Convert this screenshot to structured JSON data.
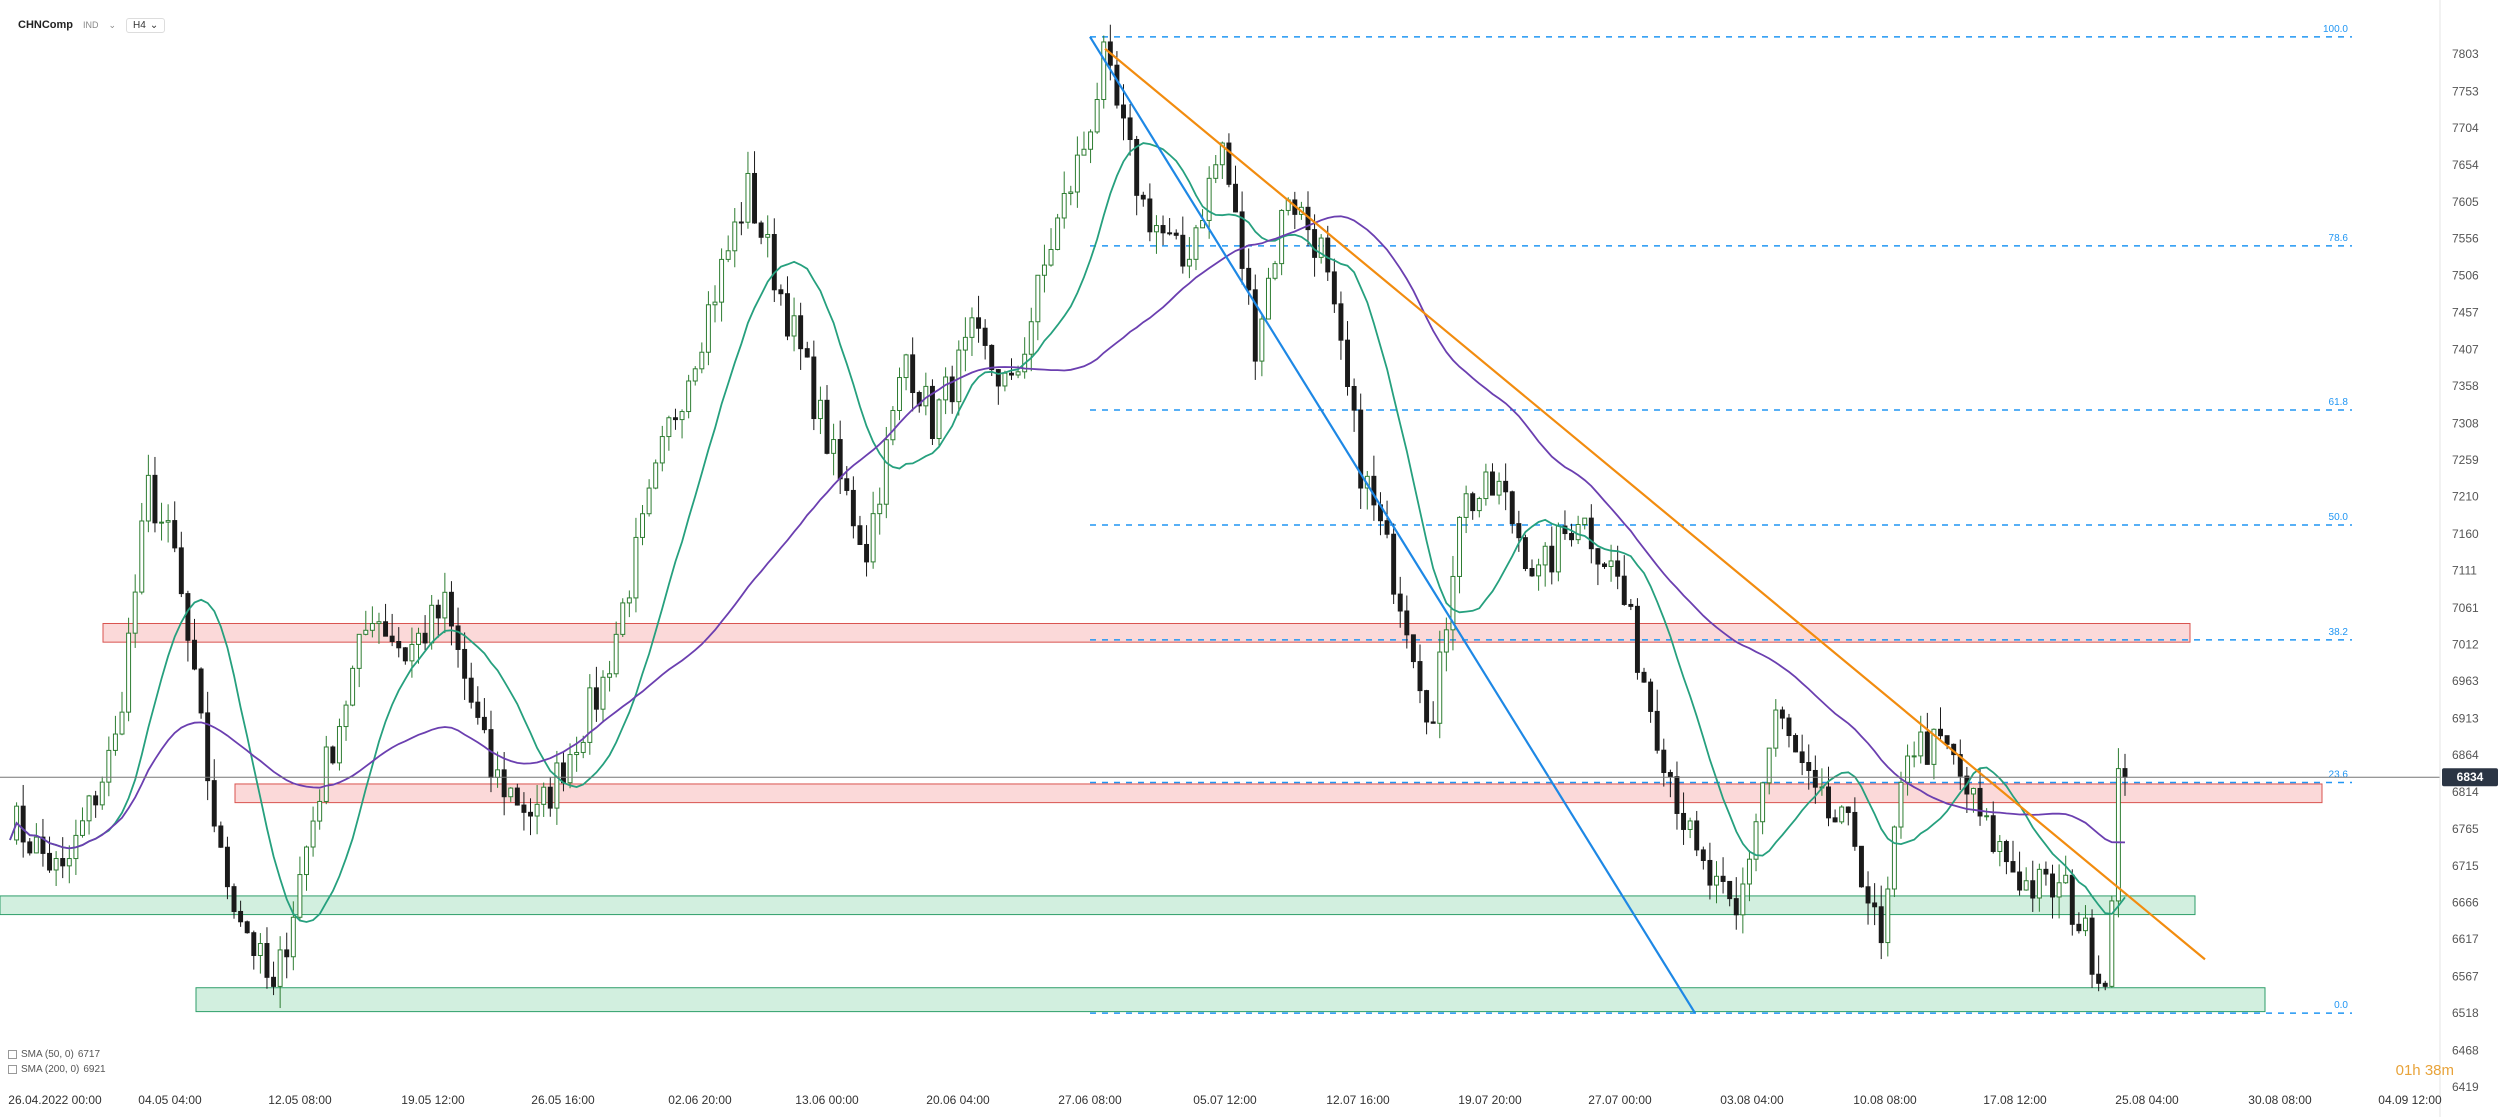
{
  "header": {
    "symbol": "CHNComp",
    "indicator_label": "IND",
    "timeframe": "H4"
  },
  "legend": [
    {
      "label": "SMA (50, 0)",
      "value": "6717"
    },
    {
      "label": "SMA (200, 0)",
      "value": "6921"
    }
  ],
  "countdown": "01h 38m",
  "chart_data": {
    "type": "candlestick",
    "title": "",
    "xlabel": "",
    "ylabel": "",
    "x_tick_labels": [
      "26.04.2022 00:00",
      "04.05 04:00",
      "12.05 08:00",
      "19.05 12:00",
      "26.05 16:00",
      "02.06 20:00",
      "13.06 00:00",
      "20.06 04:00",
      "27.06 08:00",
      "05.07 12:00",
      "12.07 16:00",
      "19.07 20:00",
      "27.07 00:00",
      "03.08 04:00",
      "10.08 08:00",
      "17.08 12:00",
      "25.08 04:00",
      "30.08 08:00",
      "04.09 12:00"
    ],
    "y_tick_labels": [
      7803,
      7753,
      7704,
      7654,
      7605,
      7556,
      7506,
      7457,
      7407,
      7358,
      7308,
      7259,
      7210,
      7160,
      7111,
      7061,
      7012,
      6963,
      6913,
      6864,
      6814,
      6765,
      6715,
      6666,
      6617,
      6567,
      6518,
      6468,
      6419
    ],
    "ylim": [
      6419,
      7850
    ],
    "current_price": 6834,
    "price_path_key_points": [
      {
        "i": 0,
        "v": 6780
      },
      {
        "i": 8,
        "v": 6700
      },
      {
        "i": 16,
        "v": 6880
      },
      {
        "i": 21,
        "v": 7220
      },
      {
        "i": 25,
        "v": 7130
      },
      {
        "i": 32,
        "v": 6720
      },
      {
        "i": 40,
        "v": 6540
      },
      {
        "i": 47,
        "v": 6820
      },
      {
        "i": 55,
        "v": 7060
      },
      {
        "i": 60,
        "v": 7000
      },
      {
        "i": 66,
        "v": 7060
      },
      {
        "i": 73,
        "v": 6840
      },
      {
        "i": 80,
        "v": 6780
      },
      {
        "i": 90,
        "v": 6960
      },
      {
        "i": 100,
        "v": 7300
      },
      {
        "i": 112,
        "v": 7620
      },
      {
        "i": 120,
        "v": 7400
      },
      {
        "i": 126,
        "v": 7230
      },
      {
        "i": 130,
        "v": 7140
      },
      {
        "i": 136,
        "v": 7400
      },
      {
        "i": 140,
        "v": 7310
      },
      {
        "i": 146,
        "v": 7420
      },
      {
        "i": 152,
        "v": 7350
      },
      {
        "i": 158,
        "v": 7550
      },
      {
        "i": 163,
        "v": 7680
      },
      {
        "i": 166,
        "v": 7790
      },
      {
        "i": 172,
        "v": 7600
      },
      {
        "i": 178,
        "v": 7520
      },
      {
        "i": 184,
        "v": 7680
      },
      {
        "i": 189,
        "v": 7420
      },
      {
        "i": 194,
        "v": 7620
      },
      {
        "i": 199,
        "v": 7540
      },
      {
        "i": 205,
        "v": 7250
      },
      {
        "i": 212,
        "v": 7050
      },
      {
        "i": 216,
        "v": 6900
      },
      {
        "i": 220,
        "v": 7200
      },
      {
        "i": 226,
        "v": 7220
      },
      {
        "i": 232,
        "v": 7100
      },
      {
        "i": 238,
        "v": 7190
      },
      {
        "i": 244,
        "v": 7100
      },
      {
        "i": 250,
        "v": 6900
      },
      {
        "i": 256,
        "v": 6720
      },
      {
        "i": 262,
        "v": 6640
      },
      {
        "i": 268,
        "v": 6920
      },
      {
        "i": 274,
        "v": 6800
      },
      {
        "i": 280,
        "v": 6750
      },
      {
        "i": 284,
        "v": 6600
      },
      {
        "i": 288,
        "v": 6880
      },
      {
        "i": 294,
        "v": 6870
      },
      {
        "i": 300,
        "v": 6760
      },
      {
        "i": 306,
        "v": 6690
      },
      {
        "i": 312,
        "v": 6680
      },
      {
        "i": 318,
        "v": 6560
      },
      {
        "i": 320,
        "v": 6834
      }
    ],
    "series": [
      {
        "name": "SMA (50, 0)",
        "value": 6717,
        "color": "#26a07e"
      },
      {
        "name": "SMA (200, 0)",
        "value": 6921,
        "color": "#6b3fb0"
      }
    ],
    "fib_levels": [
      {
        "label": "100.0",
        "value": 7826
      },
      {
        "label": "78.6",
        "value": 7546
      },
      {
        "label": "61.8",
        "value": 7326
      },
      {
        "label": "50.0",
        "value": 7172
      },
      {
        "label": "38.2",
        "value": 7018
      },
      {
        "label": "23.6",
        "value": 6827
      },
      {
        "label": "0.0",
        "value": 6518
      }
    ],
    "zones": [
      {
        "kind": "resistance",
        "from": 7015,
        "to": 7040,
        "color": "#f4a0a0"
      },
      {
        "kind": "resistance",
        "from": 6800,
        "to": 6825,
        "color": "#f4a0a0"
      },
      {
        "kind": "support",
        "from": 6650,
        "to": 6675,
        "color": "#8fd6b0"
      },
      {
        "kind": "support",
        "from": 6520,
        "to": 6552,
        "color": "#8fd6b0"
      }
    ],
    "trendlines": [
      {
        "name": "orange",
        "color": "#f28c0f",
        "from_value": 7810,
        "to_value": 6590
      },
      {
        "name": "blue",
        "color": "#1e88e5",
        "from_value": 7826,
        "to_value": 6518
      }
    ],
    "colors": {
      "bull": "#2e7d32",
      "bear": "#1a1a1a",
      "fib": "#2196f3",
      "price_tag": "#2b3544",
      "grid_axis": "#555555"
    }
  }
}
